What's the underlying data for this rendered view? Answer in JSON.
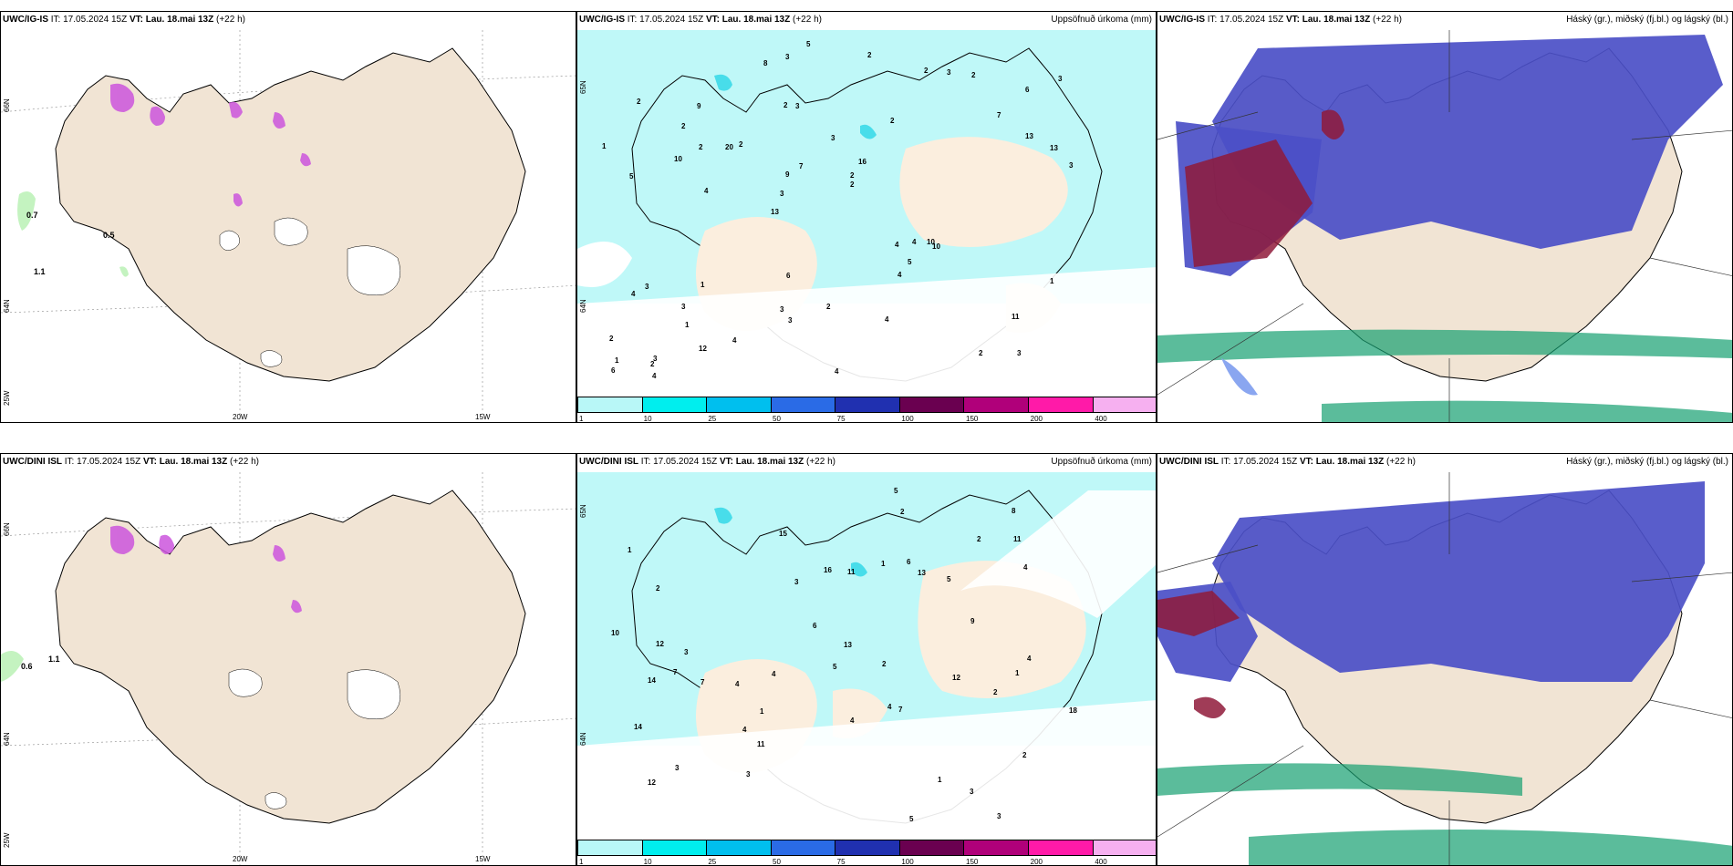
{
  "panels": {
    "top_left": {
      "model": "UWC/IG-IS",
      "it_label": "IT:",
      "it_value": "17.05.2024 15Z",
      "vt_label": "VT:",
      "vt_value": "Lau. 18.mai 13Z",
      "lead": "(+22 h)",
      "lat_labels": [
        "66N",
        "64N",
        "25W"
      ],
      "lon_labels": [
        "20W",
        "15W"
      ],
      "wind_values": [
        "0.7",
        "0.5",
        "1.1"
      ]
    },
    "top_mid": {
      "model": "UWC/IG-IS",
      "it_label": "IT:",
      "it_value": "17.05.2024 15Z",
      "vt_label": "VT:",
      "vt_value": "Lau. 18.mai 13Z",
      "lead": "(+22 h)",
      "right_label": "Uppsöfnuð úrkoma (mm)",
      "lat_labels": [
        "65N",
        "64N"
      ]
    },
    "top_right": {
      "model": "UWC/IG-IS",
      "it_label": "IT:",
      "it_value": "17.05.2024 15Z",
      "vt_label": "VT:",
      "vt_value": "Lau. 18.mai 13Z",
      "lead": "(+22 h)",
      "right_label": "Háský (gr.), miðský (fj.bl.) og lágský (bl.)"
    },
    "bottom_left": {
      "model": "UWC/DINI ISL",
      "it_label": "IT:",
      "it_value": "17.05.2024 15Z",
      "vt_label": "VT:",
      "vt_value": "Lau. 18.mai 13Z",
      "lead": "(+22 h)",
      "lat_labels": [
        "66N",
        "64N",
        "25W"
      ],
      "lon_labels": [
        "20W",
        "15W"
      ],
      "wind_values": [
        "0.6",
        "1.1"
      ]
    },
    "bottom_mid": {
      "model": "UWC/DINI ISL",
      "it_label": "IT:",
      "it_value": "17.05.2024 15Z",
      "vt_label": "VT:",
      "vt_value": "Lau. 18.mai 13Z",
      "lead": "(+22 h)",
      "right_label": "Uppsöfnuð úrkoma (mm)",
      "lat_labels": [
        "65N",
        "64N"
      ]
    },
    "bottom_right": {
      "model": "UWC/DINI ISL",
      "it_label": "IT:",
      "it_value": "17.05.2024 15Z",
      "vt_label": "VT:",
      "vt_value": "Lau. 18.mai 13Z",
      "lead": "(+22 h)",
      "right_label": "Háský (gr.), miðský (fj.bl.) og lágský (bl.)"
    }
  },
  "precip_colorbar": {
    "labels": [
      "1",
      "10",
      "25",
      "50",
      "75",
      "100",
      "150",
      "200",
      "400"
    ],
    "colors": [
      "#b8f7f7",
      "#00eeee",
      "#00bfee",
      "#2a6be6",
      "#2030b0",
      "#6a0050",
      "#b0007a",
      "#ff1aa8",
      "#f6b0f0"
    ]
  },
  "precip_values_top": [
    "3",
    "5",
    "6",
    "13",
    "2",
    "3",
    "2",
    "3",
    "3",
    "2",
    "2",
    "1",
    "3",
    "16",
    "10",
    "2",
    "3",
    "3",
    "4",
    "13",
    "3",
    "3",
    "9",
    "9",
    "2",
    "1",
    "2",
    "11",
    "10",
    "4",
    "20",
    "10",
    "4",
    "12",
    "13",
    "2",
    "1",
    "3",
    "2",
    "4",
    "7",
    "3",
    "5",
    "4",
    "3",
    "4",
    "6",
    "2",
    "2",
    "5",
    "4",
    "1",
    "2",
    "3",
    "2",
    "2",
    "8",
    "7",
    "1",
    "6",
    "4",
    "4",
    "2"
  ],
  "precip_values_bottom": [
    "3",
    "7",
    "4",
    "1",
    "2",
    "2",
    "3",
    "4",
    "5",
    "16",
    "13",
    "3",
    "11",
    "15",
    "2",
    "14",
    "12",
    "13",
    "10",
    "12",
    "8",
    "11",
    "9",
    "18",
    "4",
    "12",
    "7",
    "5",
    "6",
    "11",
    "7",
    "14",
    "4",
    "6",
    "3",
    "2",
    "1",
    "1",
    "2",
    "5",
    "1",
    "4",
    "3",
    "5",
    "4",
    "3",
    "4",
    "2",
    "1"
  ],
  "colors": {
    "land": "#f1e4d4",
    "precip_light": "#b8f7f7",
    "cloud_low": "#4b4fc7",
    "cloud_mid": "#8aa6f0",
    "cloud_high": "#15a070",
    "cloud_deep": "#8f1a3a",
    "snow": "#cc55dd"
  }
}
